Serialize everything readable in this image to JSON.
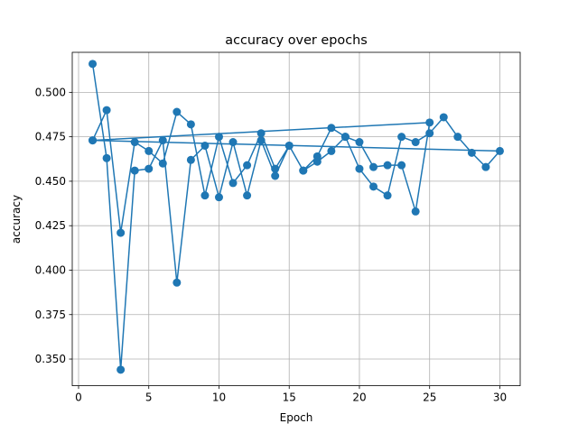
{
  "chart_data": {
    "type": "line",
    "title": "accuracy over epochs",
    "xlabel": "Epoch",
    "ylabel": "accuracy",
    "xlim": [
      -0.45,
      31.45
    ],
    "ylim": [
      0.335,
      0.5225
    ],
    "xticks": [
      0,
      5,
      10,
      15,
      20,
      25,
      30
    ],
    "yticks": [
      0.35,
      0.375,
      0.4,
      0.425,
      0.45,
      0.475,
      0.5
    ],
    "ytick_labels": [
      "0.350",
      "0.375",
      "0.400",
      "0.425",
      "0.450",
      "0.475",
      "0.500"
    ],
    "grid": true,
    "legend": "none",
    "series": [
      {
        "color": "#1f77b4",
        "marker": "circle",
        "points": [
          [
            1,
            0.516
          ],
          [
            2,
            0.463
          ],
          [
            3,
            0.344
          ],
          [
            4,
            0.456
          ],
          [
            5,
            0.457
          ],
          [
            6,
            0.473
          ],
          [
            7,
            0.393
          ],
          [
            8,
            0.462
          ],
          [
            9,
            0.47
          ],
          [
            10,
            0.441
          ],
          [
            11,
            0.472
          ],
          [
            12,
            0.442
          ],
          [
            13,
            0.473
          ],
          [
            14,
            0.453
          ],
          [
            15,
            0.47
          ],
          [
            16,
            0.456
          ],
          [
            17,
            0.461
          ],
          [
            18,
            0.467
          ],
          [
            19,
            0.475
          ],
          [
            20,
            0.457
          ],
          [
            21,
            0.447
          ],
          [
            22,
            0.442
          ],
          [
            23,
            0.475
          ],
          [
            24,
            0.472
          ],
          [
            25,
            0.477
          ],
          [
            26,
            0.486
          ],
          [
            27,
            0.475
          ],
          [
            28,
            0.466
          ],
          [
            29,
            0.458
          ],
          [
            30,
            0.467
          ],
          [
            1,
            0.473
          ],
          [
            2,
            0.49
          ],
          [
            3,
            0.421
          ],
          [
            4,
            0.472
          ],
          [
            5,
            0.467
          ],
          [
            6,
            0.46
          ],
          [
            7,
            0.489
          ],
          [
            8,
            0.482
          ],
          [
            9,
            0.442
          ],
          [
            10,
            0.475
          ],
          [
            11,
            0.449
          ],
          [
            12,
            0.459
          ],
          [
            13,
            0.477
          ],
          [
            14,
            0.457
          ],
          [
            15,
            0.47
          ],
          [
            16,
            0.456
          ],
          [
            17,
            0.464
          ],
          [
            18,
            0.48
          ],
          [
            19,
            0.475
          ],
          [
            20,
            0.472
          ],
          [
            21,
            0.458
          ],
          [
            22,
            0.459
          ],
          [
            23,
            0.459
          ],
          [
            24,
            0.433
          ],
          [
            25,
            0.483
          ],
          [
            1,
            0.473
          ]
        ]
      }
    ]
  }
}
